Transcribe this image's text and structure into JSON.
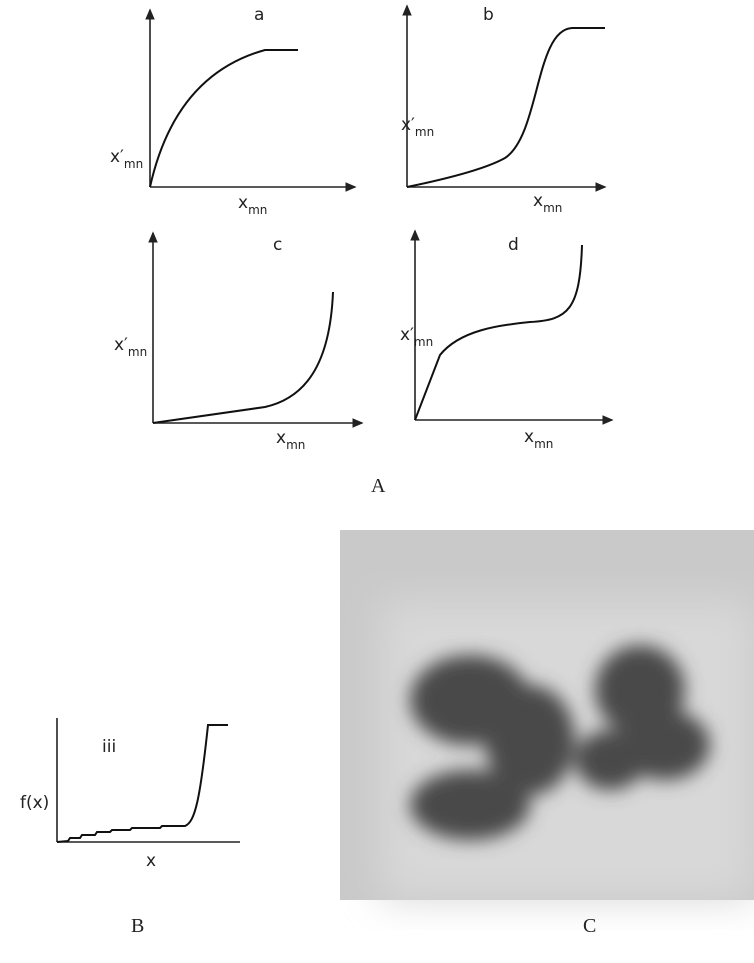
{
  "panels_A": [
    {
      "label": "a",
      "x_label": {
        "base": "x",
        "sub": "mn"
      },
      "y_label": {
        "base": "x′",
        "sub": "mn"
      }
    },
    {
      "label": "b",
      "x_label": {
        "base": "x",
        "sub": "mn"
      },
      "y_label": {
        "base": "x′",
        "sub": "mn"
      }
    },
    {
      "label": "c",
      "x_label": {
        "base": "x",
        "sub": "mn"
      },
      "y_label": {
        "base": "x′",
        "sub": "mn"
      }
    },
    {
      "label": "d",
      "x_label": {
        "base": "x",
        "sub": "mn"
      },
      "y_label": {
        "base": "x′",
        "sub": "mn"
      }
    }
  ],
  "panel_B": {
    "label": "iii",
    "y_label": "f(x)",
    "x_label": "x"
  },
  "figure_labels": {
    "A": "A",
    "B": "B",
    "C": "C"
  }
}
